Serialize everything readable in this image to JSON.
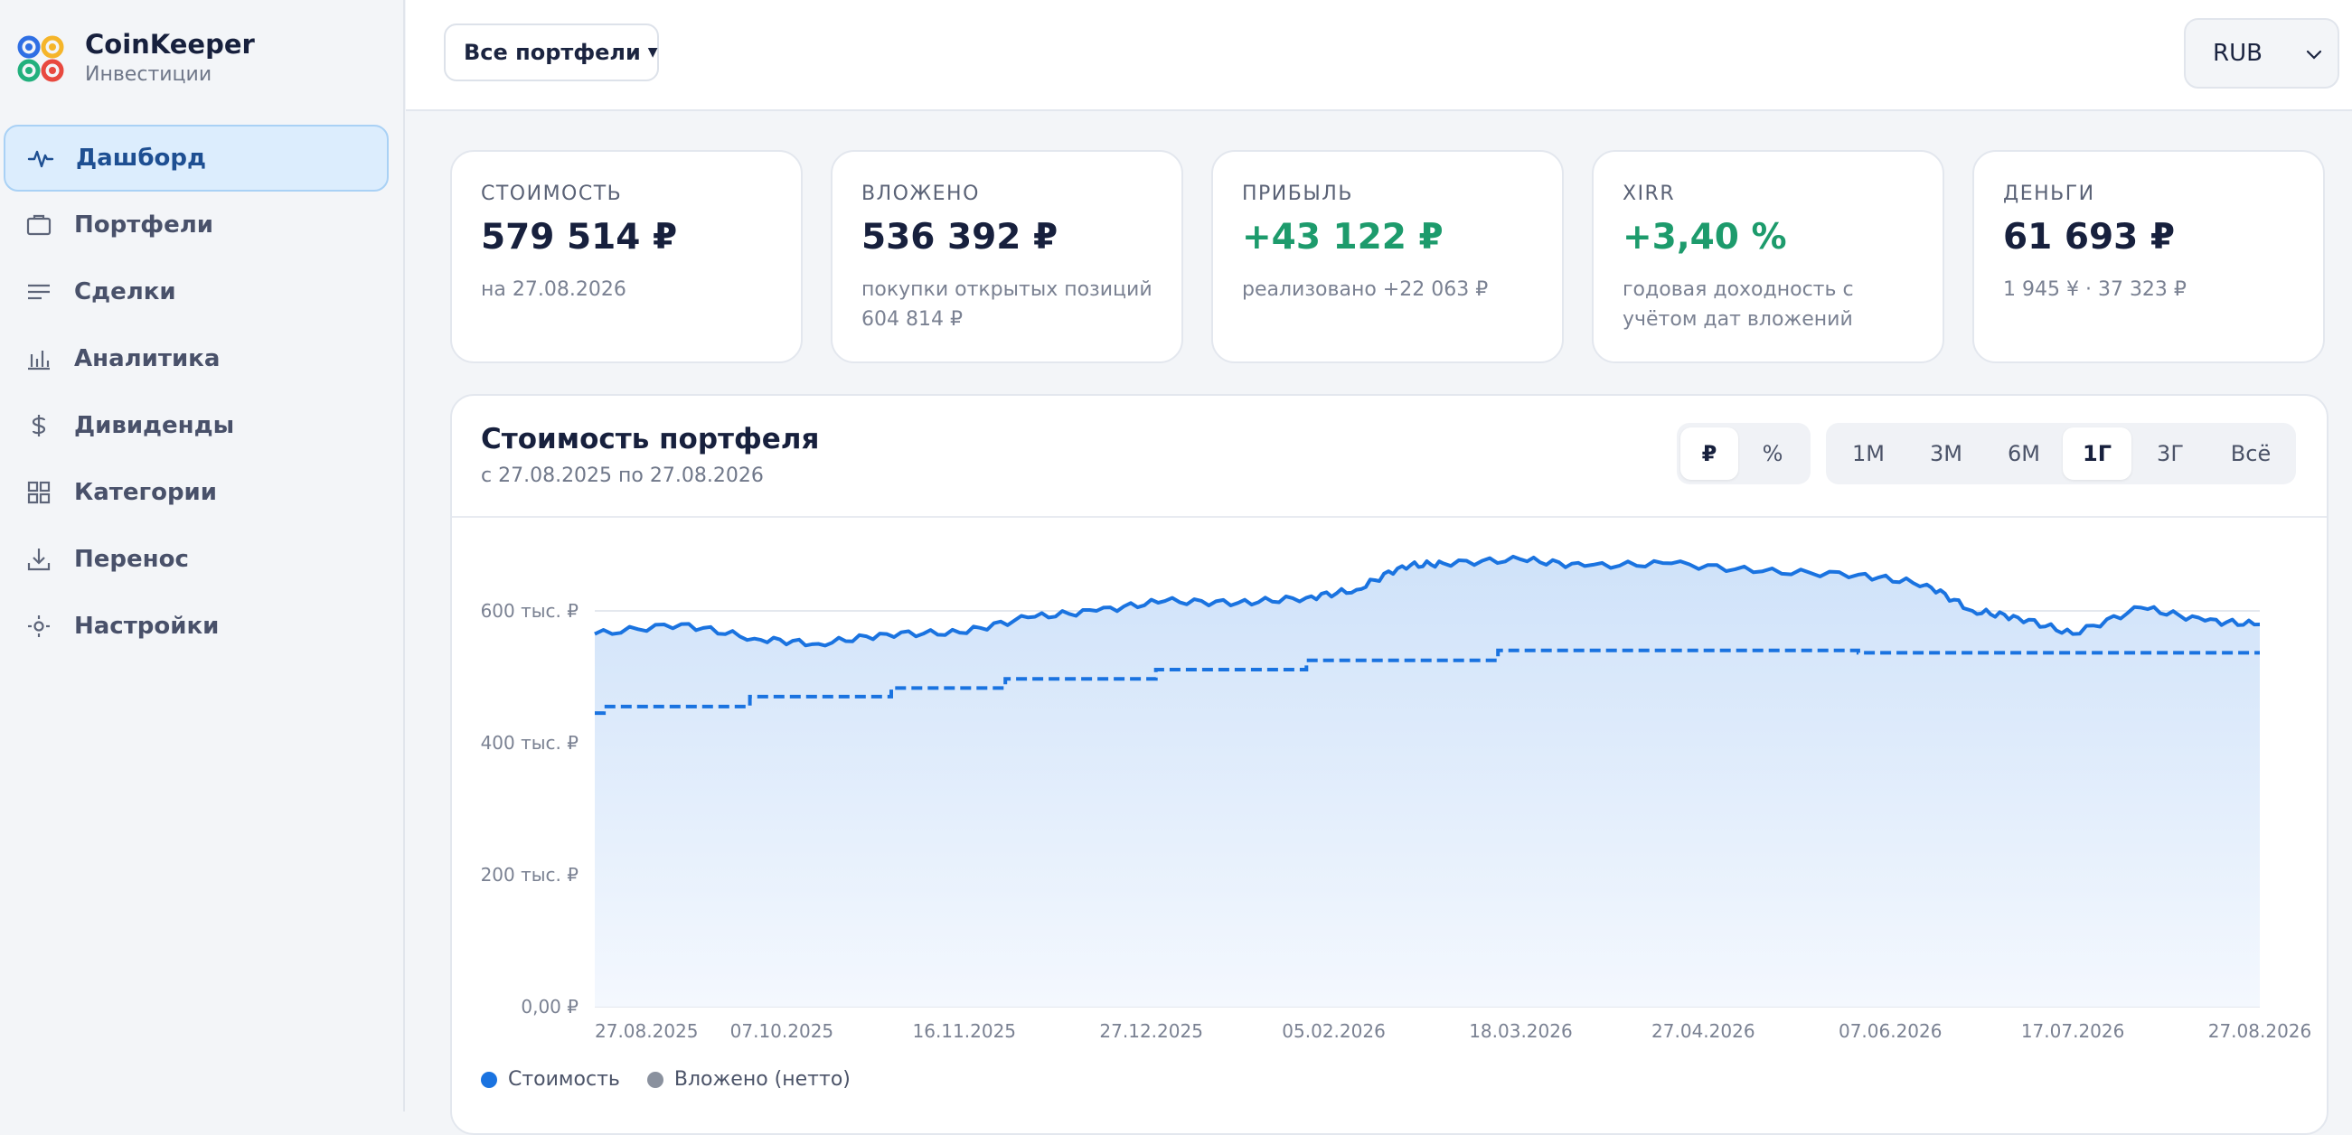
{
  "app": {
    "name": "CoinKeeper",
    "subtitle": "Инвестиции"
  },
  "sidebar": {
    "items": [
      {
        "label": "Дашборд",
        "icon": "activity-icon",
        "active": true
      },
      {
        "label": "Портфели",
        "icon": "briefcase-icon",
        "active": false
      },
      {
        "label": "Сделки",
        "icon": "list-icon",
        "active": false
      },
      {
        "label": "Аналитика",
        "icon": "bar-chart-icon",
        "active": false
      },
      {
        "label": "Дивиденды",
        "icon": "dollar-icon",
        "active": false
      },
      {
        "label": "Категории",
        "icon": "grid-icon",
        "active": false
      },
      {
        "label": "Перенос",
        "icon": "download-icon",
        "active": false
      },
      {
        "label": "Настройки",
        "icon": "settings-icon",
        "active": false
      }
    ]
  },
  "header": {
    "portfolio_select": "Все портфели",
    "currency": "RUB"
  },
  "kpis": [
    {
      "label": "СТОИМОСТЬ",
      "value": "579 514 ₽",
      "sub": "на 27.08.2026",
      "positive": false
    },
    {
      "label": "ВЛОЖЕНО",
      "value": "536 392 ₽",
      "sub": "покупки открытых позиций 604 814 ₽",
      "positive": false
    },
    {
      "label": "ПРИБЫЛЬ",
      "value": "+43 122 ₽",
      "sub": "реализовано +22 063 ₽",
      "positive": true
    },
    {
      "label": "XIRR",
      "value": "+3,40 %",
      "sub": "годовая доходность с учётом дат вложений",
      "positive": true
    },
    {
      "label": "ДЕНЬГИ",
      "value": "61 693 ₽",
      "sub": "1 945 ¥ · 37 323 ₽",
      "positive": false
    }
  ],
  "panel": {
    "title": "Стоимость портфеля",
    "subtitle": "с 27.08.2025 по 27.08.2026",
    "unit_toggle": [
      {
        "label": "₽",
        "active": true
      },
      {
        "label": "%",
        "active": false
      }
    ],
    "ranges": [
      {
        "label": "1М",
        "active": false
      },
      {
        "label": "3М",
        "active": false
      },
      {
        "label": "6М",
        "active": false
      },
      {
        "label": "1Г",
        "active": true
      },
      {
        "label": "3Г",
        "active": false
      },
      {
        "label": "Всё",
        "active": false
      }
    ]
  },
  "colors": {
    "accent": "#1a73e0",
    "positive": "#1d9b6c",
    "invested_legend": "#8a919e"
  },
  "chart_data": {
    "type": "area",
    "x_ticks": [
      "27.08.2025",
      "07.10.2025",
      "16.11.2025",
      "27.12.2025",
      "05.02.2026",
      "18.03.2026",
      "27.04.2026",
      "07.06.2026",
      "17.07.2026",
      "27.08.2026"
    ],
    "y_ticks": [
      "0,00 ₽",
      "200 тыс. ₽",
      "400 тыс. ₽",
      "600 тыс. ₽"
    ],
    "ylim": [
      0,
      600000
    ],
    "grid": true,
    "series": [
      {
        "name": "Стоимость",
        "style": "solid-area",
        "x": [
          "2025-08-27",
          "2025-09-15",
          "2025-10-01",
          "2025-10-15",
          "2025-10-30",
          "2025-11-15",
          "2025-11-30",
          "2025-12-15",
          "2025-12-30",
          "2026-01-15",
          "2026-01-30",
          "2026-02-10",
          "2026-02-20",
          "2026-03-01",
          "2026-03-18",
          "2026-04-01",
          "2026-04-20",
          "2026-05-10",
          "2026-05-31",
          "2026-06-15",
          "2026-06-25",
          "2026-07-05",
          "2026-07-17",
          "2026-08-01",
          "2026-08-15",
          "2026-08-27"
        ],
        "y": [
          565000,
          580000,
          558000,
          550000,
          565000,
          567000,
          590000,
          600000,
          615000,
          612000,
          620000,
          632000,
          668000,
          672000,
          678000,
          668000,
          672000,
          660000,
          655000,
          640000,
          600000,
          590000,
          565000,
          605000,
          585000,
          579514
        ]
      },
      {
        "name": "Вложено (нетто)",
        "style": "dashed-step",
        "x": [
          "2025-08-27",
          "2025-08-29",
          "2025-09-30",
          "2025-10-31",
          "2025-11-25",
          "2025-12-28",
          "2026-01-30",
          "2026-03-13",
          "2026-05-31",
          "2026-08-27"
        ],
        "y": [
          445000,
          455000,
          470000,
          483000,
          497000,
          511000,
          525000,
          540000,
          536392,
          536392
        ]
      }
    ]
  }
}
